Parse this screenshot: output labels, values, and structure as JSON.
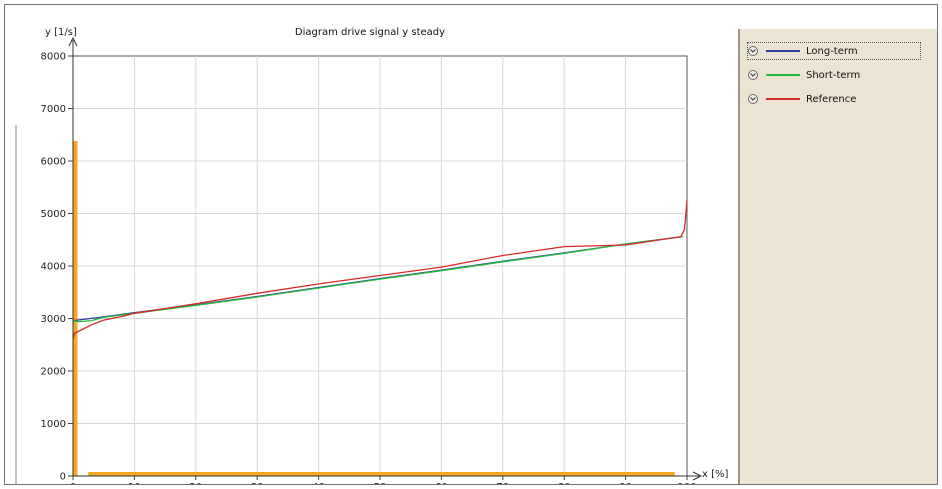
{
  "chart_data": {
    "type": "line",
    "title": "Diagram drive signal y steady",
    "ylabel": "y [1/s]",
    "xlabel": "x [%]",
    "xlim": [
      0,
      100
    ],
    "ylim": [
      0,
      8000
    ],
    "x_ticks": [
      "0",
      "10",
      "20",
      "30",
      "40",
      "50",
      "60",
      "70",
      "80",
      "90",
      "100"
    ],
    "y_ticks": [
      "0",
      "1000",
      "2000",
      "3000",
      "4000",
      "5000",
      "6000",
      "7000",
      "8000"
    ],
    "grid": true,
    "legend_position": "right",
    "series": [
      {
        "name": "Long-term",
        "color": "#2f3fa8",
        "x": [
          0,
          5,
          10,
          20,
          30,
          40,
          50,
          60,
          70,
          80,
          90,
          99.3
        ],
        "y": [
          2960,
          3030,
          3110,
          3260,
          3420,
          3590,
          3760,
          3920,
          4090,
          4250,
          4420,
          4560
        ]
      },
      {
        "name": "Short-term",
        "color": "#25b83a",
        "x": [
          0,
          1,
          3,
          5,
          10,
          20,
          30,
          40,
          50,
          60,
          70,
          80,
          90,
          99.3
        ],
        "y": [
          2960,
          2940,
          2960,
          3020,
          3100,
          3250,
          3410,
          3580,
          3750,
          3910,
          4080,
          4240,
          4420,
          4560
        ]
      },
      {
        "name": "Reference",
        "color": "#d42a2a",
        "x": [
          0,
          0.3,
          1.5,
          3,
          5,
          8,
          10,
          20,
          30,
          40,
          50,
          60,
          70,
          80,
          90,
          99,
          99.6,
          100
        ],
        "y": [
          2620,
          2720,
          2790,
          2880,
          2970,
          3040,
          3100,
          3280,
          3480,
          3660,
          3820,
          3980,
          4200,
          4370,
          4400,
          4560,
          4700,
          5250
        ]
      }
    ],
    "highlights": {
      "color": "#f5a623",
      "y_axis_band": [
        0,
        6380
      ],
      "x_axis_band": [
        2.5,
        98
      ]
    }
  }
}
